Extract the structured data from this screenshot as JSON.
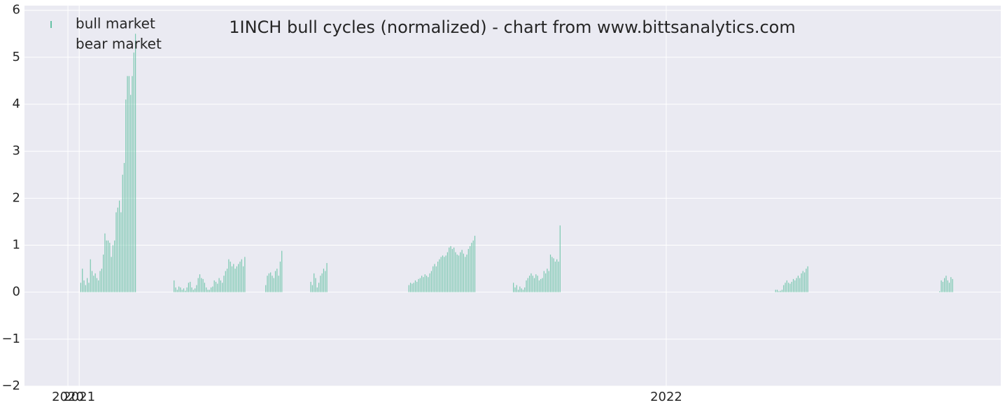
{
  "chart_data": {
    "type": "bar",
    "title": "1INCH bull cycles (normalized)  - chart from www.bittsanalytics.com",
    "xlim": [
      -34,
      573
    ],
    "xticks": [
      {
        "value": -7,
        "label": "2020"
      },
      {
        "value": 0,
        "label": "2021"
      },
      {
        "value": 365,
        "label": "2022"
      }
    ],
    "ylim": [
      -2,
      6.1
    ],
    "yticks": [
      {
        "value": -2,
        "label": "−2"
      },
      {
        "value": -1,
        "label": "−1"
      },
      0,
      1,
      2,
      3,
      4,
      5,
      6
    ],
    "grid": true,
    "legend": "upper-left",
    "series": [
      {
        "name": "bull market",
        "color": "#66c2a5",
        "x": [
          1,
          2,
          3,
          4,
          5,
          6,
          7,
          8,
          9,
          10,
          11,
          12,
          13,
          14,
          15,
          16,
          17,
          18,
          19,
          20,
          21,
          22,
          23,
          24,
          25,
          26,
          27,
          28,
          29,
          30,
          31,
          32,
          33,
          34,
          35,
          59,
          60,
          61,
          62,
          63,
          64,
          65,
          66,
          67,
          68,
          69,
          70,
          71,
          72,
          73,
          74,
          75,
          76,
          77,
          78,
          79,
          80,
          81,
          82,
          83,
          84,
          85,
          86,
          87,
          88,
          89,
          90,
          91,
          92,
          93,
          94,
          95,
          96,
          97,
          98,
          99,
          100,
          101,
          102,
          103,
          116,
          117,
          118,
          119,
          120,
          121,
          122,
          123,
          124,
          125,
          126,
          144,
          145,
          146,
          147,
          148,
          149,
          150,
          151,
          152,
          153,
          154,
          205,
          206,
          207,
          208,
          209,
          210,
          211,
          212,
          213,
          214,
          215,
          216,
          217,
          218,
          219,
          220,
          221,
          222,
          223,
          224,
          225,
          226,
          227,
          228,
          229,
          230,
          231,
          232,
          233,
          234,
          235,
          236,
          237,
          238,
          239,
          240,
          241,
          242,
          243,
          244,
          245,
          246,
          270,
          271,
          272,
          273,
          274,
          275,
          276,
          277,
          278,
          279,
          280,
          281,
          282,
          283,
          284,
          285,
          286,
          287,
          288,
          289,
          290,
          291,
          292,
          293,
          294,
          295,
          296,
          297,
          298,
          299,
          433,
          434,
          435,
          436,
          437,
          438,
          439,
          440,
          441,
          442,
          443,
          444,
          445,
          446,
          447,
          448,
          449,
          450,
          451,
          452,
          453,
          535,
          536,
          537,
          538,
          539,
          540,
          541,
          542,
          543
        ],
        "values": [
          0.2,
          0.5,
          0.25,
          0.15,
          0.3,
          0.2,
          0.7,
          0.45,
          0.35,
          0.4,
          0.3,
          0.25,
          0.45,
          0.5,
          0.8,
          1.25,
          1.1,
          1.1,
          1.05,
          0.75,
          1.0,
          1.1,
          1.7,
          1.8,
          1.95,
          1.7,
          2.5,
          2.75,
          4.1,
          4.6,
          4.6,
          4.2,
          4.6,
          5.1,
          5.5,
          0.25,
          0.1,
          0.05,
          0.12,
          0.1,
          0.05,
          0.08,
          0.03,
          0.1,
          0.2,
          0.22,
          0.1,
          0.05,
          0.08,
          0.15,
          0.3,
          0.38,
          0.3,
          0.28,
          0.2,
          0.1,
          0.05,
          0.05,
          0.1,
          0.12,
          0.25,
          0.22,
          0.18,
          0.3,
          0.25,
          0.2,
          0.35,
          0.45,
          0.5,
          0.7,
          0.65,
          0.55,
          0.6,
          0.5,
          0.55,
          0.6,
          0.65,
          0.7,
          0.55,
          0.75,
          0.15,
          0.35,
          0.4,
          0.42,
          0.35,
          0.3,
          0.45,
          0.5,
          0.35,
          0.65,
          0.88,
          0.22,
          0.15,
          0.4,
          0.3,
          0.1,
          0.2,
          0.35,
          0.4,
          0.5,
          0.45,
          0.62,
          0.15,
          0.2,
          0.18,
          0.2,
          0.25,
          0.22,
          0.28,
          0.3,
          0.35,
          0.32,
          0.38,
          0.35,
          0.32,
          0.4,
          0.45,
          0.55,
          0.6,
          0.55,
          0.65,
          0.7,
          0.75,
          0.78,
          0.75,
          0.78,
          0.85,
          0.95,
          0.98,
          0.92,
          0.95,
          0.85,
          0.8,
          0.78,
          0.85,
          0.9,
          0.82,
          0.75,
          0.8,
          0.92,
          0.98,
          1.05,
          1.1,
          1.2,
          0.2,
          0.1,
          0.15,
          0.05,
          0.12,
          0.08,
          0.05,
          0.1,
          0.25,
          0.3,
          0.35,
          0.4,
          0.35,
          0.3,
          0.38,
          0.35,
          0.25,
          0.28,
          0.3,
          0.45,
          0.4,
          0.5,
          0.45,
          0.8,
          0.75,
          0.72,
          0.65,
          0.7,
          0.65,
          1.42,
          0.05,
          0.05,
          0.02,
          0.03,
          0.05,
          0.15,
          0.2,
          0.25,
          0.2,
          0.18,
          0.22,
          0.28,
          0.25,
          0.3,
          0.35,
          0.3,
          0.4,
          0.45,
          0.42,
          0.5,
          0.55,
          0.02,
          0.25,
          0.22,
          0.3,
          0.35,
          0.25,
          0.2,
          0.32,
          0.28
        ]
      },
      {
        "name": "bear market",
        "color": "#fc8d62",
        "x": [],
        "values": []
      }
    ]
  }
}
